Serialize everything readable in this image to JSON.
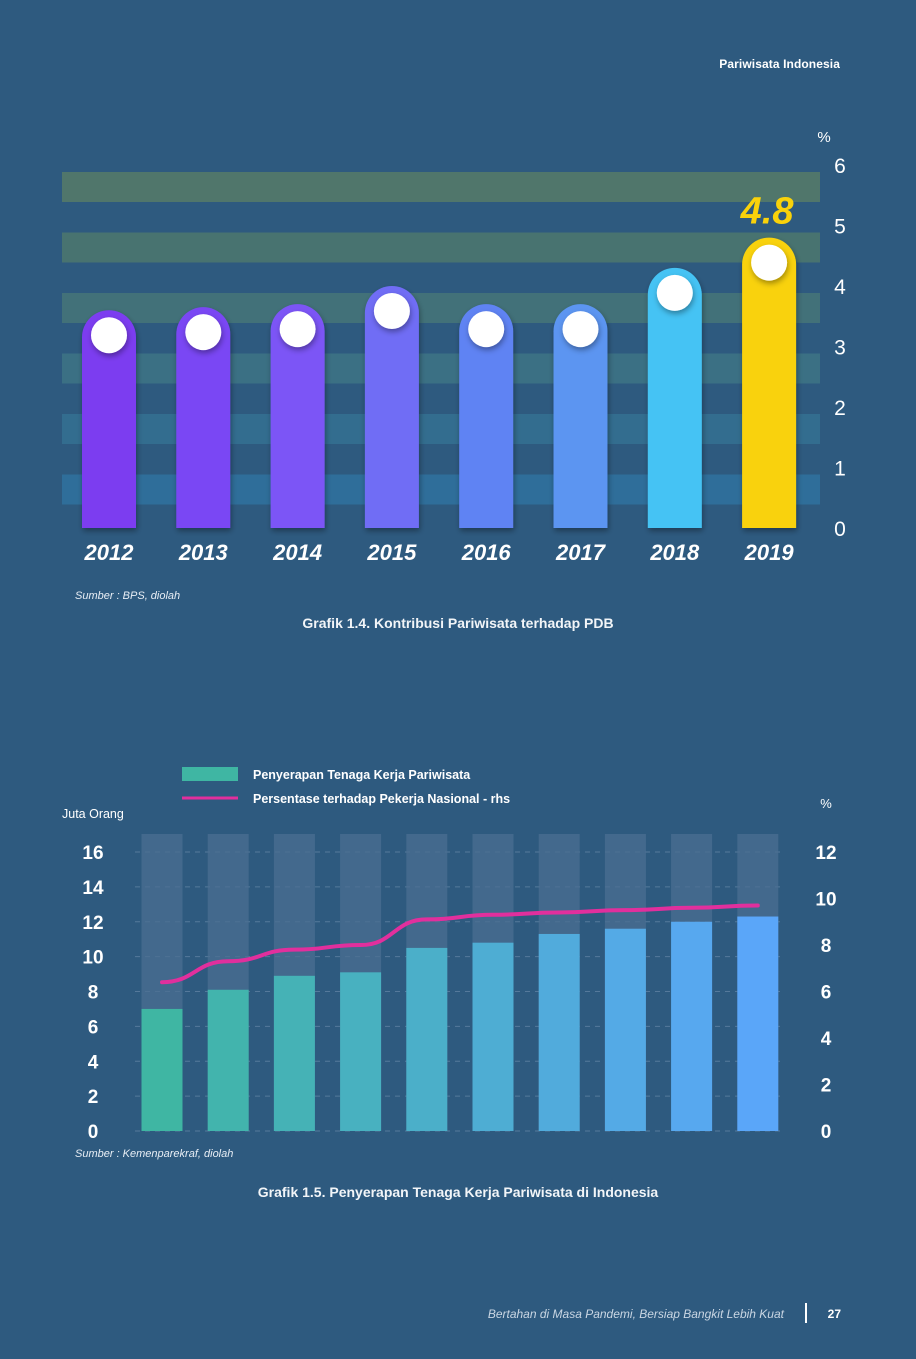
{
  "header": {
    "title": "Pariwisata Indonesia"
  },
  "chart_data": [
    {
      "type": "bar",
      "categories": [
        "2012",
        "2013",
        "2014",
        "2015",
        "2016",
        "2017",
        "2018",
        "2019"
      ],
      "values": [
        3.6,
        3.65,
        3.7,
        4.0,
        3.7,
        3.7,
        4.3,
        4.8
      ],
      "highlight_label": "4.8",
      "yunit": "%",
      "yticks": [
        "0",
        "1",
        "2",
        "3",
        "4",
        "5",
        "6"
      ],
      "ylim": [
        0,
        6
      ],
      "yaxis_position": "right",
      "source": "Sumber : BPS, diolah",
      "caption": "Grafik 1.4. Kontribusi Pariwisata terhadap PDB",
      "colors": [
        "#7b3cf0",
        "#7a47f4",
        "#7b55f6",
        "#6f6df5",
        "#5f83f3",
        "#5b95f1",
        "#44c3f4",
        "#f9d20a"
      ]
    },
    {
      "type": "bar",
      "categories": [
        "",
        "",
        "",
        "",
        "",
        "",
        "",
        "",
        "",
        ""
      ],
      "series": [
        {
          "name": "Penyerapan Tenaga Kerja Pariwisata",
          "type": "bar",
          "axis": "left",
          "values": [
            7.0,
            8.1,
            8.9,
            9.1,
            10.5,
            10.8,
            11.3,
            11.6,
            12.0,
            12.3
          ]
        },
        {
          "name": "Persentase terhadap Pekerja Nasional - rhs",
          "type": "line",
          "axis": "right",
          "values": [
            6.4,
            7.3,
            7.8,
            8.0,
            9.1,
            9.3,
            9.4,
            9.5,
            9.6,
            9.7
          ]
        }
      ],
      "ylabel": "Juta Orang",
      "ylim": [
        0,
        16
      ],
      "yticks": [
        "0",
        "2",
        "4",
        "6",
        "8",
        "10",
        "12",
        "14",
        "16"
      ],
      "y2label": "%",
      "y2lim": [
        0,
        12
      ],
      "y2ticks": [
        "0",
        "2",
        "4",
        "6",
        "8",
        "10",
        "12"
      ],
      "legend_position": "top",
      "source": "Sumber : Kemenparekraf, diolah",
      "caption": "Grafik 1.5. Penyerapan Tenaga Kerja Pariwisata di Indonesia",
      "colors": {
        "bar_start": "#3fb6a3",
        "bar_end": "#5aa6f9",
        "line": "#e12f9d",
        "track": "#4b6f92"
      }
    }
  ],
  "footer": {
    "text": "Bertahan di Masa Pandemi, Bersiap Bangkit Lebih Kuat",
    "page": "27"
  }
}
